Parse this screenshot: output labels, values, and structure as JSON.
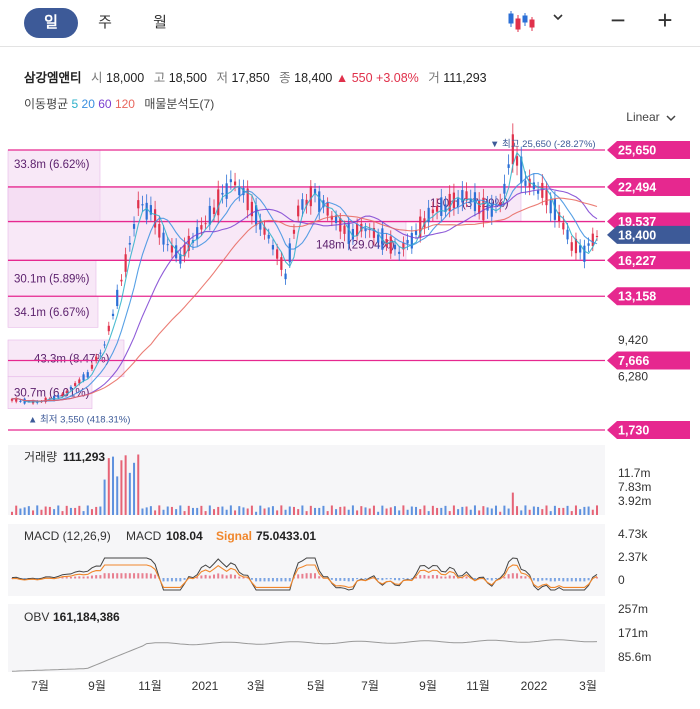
{
  "tabs": [
    {
      "label": "일",
      "active": true
    },
    {
      "label": "주",
      "active": false
    },
    {
      "label": "월",
      "active": false
    }
  ],
  "toolbar": {
    "chart_type_icon": "candlestick-icon",
    "dropdown_icon": "chevron-down-icon",
    "zoom_out_label": "−",
    "zoom_in_label": "+"
  },
  "stock": {
    "name": "삼강엠앤티",
    "open_label": "시",
    "open": "18,000",
    "high_label": "고",
    "high": "18,500",
    "low_label": "저",
    "low": "17,850",
    "close_label": "종",
    "close": "18,400",
    "change": "▲ 550 +3.08%",
    "volume_label": "거",
    "volume": "111,293"
  },
  "moving_avg": {
    "label": "이동평균",
    "periods": [
      "5",
      "20",
      "60",
      "120"
    ],
    "period_colors": [
      "#2bb0c9",
      "#3a8fe0",
      "#7b3fd1",
      "#e8665d"
    ],
    "extra": "매물분석도(7)"
  },
  "scale_mode": "Linear",
  "colors": {
    "up": "#e0314b",
    "down": "#2b6fd6",
    "level": "#e6288f",
    "current": "#3d5a98"
  },
  "chart_data": {
    "type": "candlestick",
    "x_tick_labels": [
      "7월",
      "9월",
      "11월",
      "2021",
      "3월",
      "5월",
      "7월",
      "9월",
      "11월",
      "2022",
      "3월"
    ],
    "price_axis_labels": [
      "25,650",
      "22,494",
      "19,537",
      "18,400",
      "16,227",
      "13,158",
      "9,420",
      "7,666",
      "6,280",
      "1,730"
    ],
    "current_price": "18,400",
    "horizontal_levels": [
      25650,
      22494,
      19537,
      16227,
      13158,
      7666,
      1730
    ],
    "max_annotation": "▼ 최고  25,650 (-28.27%)",
    "min_annotation": "▲ 최저  3,550 (418.31%)",
    "volume_profile": [
      {
        "label": "33.8m (6.62%)",
        "low": 19537,
        "high": 25650
      },
      {
        "label": "190m (37.29%)",
        "low": 19537,
        "high": 22494
      },
      {
        "label": "148m (29.04%)",
        "low": 16227,
        "high": 19537
      },
      {
        "label": "30.1m (5.89%)",
        "low": 13158,
        "high": 16227
      },
      {
        "label": "34.1m (6.67%)",
        "low": 10500,
        "high": 13158
      },
      {
        "label": "43.3m (8.47%)",
        "low": 6280,
        "high": 9420
      },
      {
        "label": "30.7m (6.01%)",
        "low": 3550,
        "high": 6280
      }
    ],
    "volume_panel": {
      "label": "거래량",
      "value": "111,293",
      "axis_labels": [
        "11.7m",
        "7.83m",
        "3.92m"
      ]
    },
    "macd_panel": {
      "label": "MACD (12,26,9)",
      "macd_label": "MACD",
      "macd_value": "108.04",
      "signal_label": "Signal",
      "signal_value": "75.0433.01",
      "axis_labels": [
        "4.73k",
        "2.37k",
        "0"
      ]
    },
    "obv_panel": {
      "label": "OBV",
      "value": "161,184,386",
      "axis_labels": [
        "257m",
        "171m",
        "85.6m"
      ]
    }
  }
}
